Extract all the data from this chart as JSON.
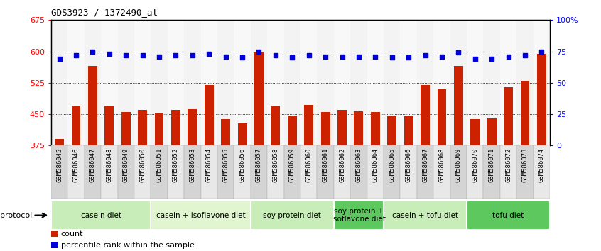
{
  "title": "GDS3923 / 1372490_at",
  "samples": [
    "GSM586045",
    "GSM586046",
    "GSM586047",
    "GSM586048",
    "GSM586049",
    "GSM586050",
    "GSM586051",
    "GSM586052",
    "GSM586053",
    "GSM586054",
    "GSM586055",
    "GSM586056",
    "GSM586057",
    "GSM586058",
    "GSM586059",
    "GSM586060",
    "GSM586061",
    "GSM586062",
    "GSM586063",
    "GSM586064",
    "GSM586065",
    "GSM586066",
    "GSM586067",
    "GSM586068",
    "GSM586069",
    "GSM586070",
    "GSM586071",
    "GSM586072",
    "GSM586073",
    "GSM586074"
  ],
  "counts": [
    390,
    470,
    565,
    470,
    455,
    460,
    452,
    460,
    462,
    520,
    438,
    428,
    598,
    470,
    447,
    472,
    455,
    460,
    457,
    455,
    445,
    445,
    520,
    510,
    565,
    438,
    440,
    515,
    530,
    595
  ],
  "percentile_ranks": [
    69,
    72,
    75,
    73,
    72,
    72,
    71,
    72,
    72,
    73,
    71,
    70,
    75,
    72,
    70,
    72,
    71,
    71,
    71,
    71,
    70,
    70,
    72,
    71,
    74,
    69,
    69,
    71,
    72,
    75
  ],
  "groups": [
    {
      "label": "casein diet",
      "start": 0,
      "end": 6,
      "color": "#c8edb8"
    },
    {
      "label": "casein + isoflavone diet",
      "start": 6,
      "end": 12,
      "color": "#e0f5d0"
    },
    {
      "label": "soy protein diet",
      "start": 12,
      "end": 17,
      "color": "#c8edb8"
    },
    {
      "label": "soy protein +\nisoflavone diet",
      "start": 17,
      "end": 20,
      "color": "#5dc85d"
    },
    {
      "label": "casein + tofu diet",
      "start": 20,
      "end": 25,
      "color": "#c8edb8"
    },
    {
      "label": "tofu diet",
      "start": 25,
      "end": 30,
      "color": "#5dc85d"
    }
  ],
  "ylim_left": [
    375,
    675
  ],
  "ylim_right": [
    0,
    100
  ],
  "yticks_left": [
    375,
    450,
    525,
    600,
    675
  ],
  "yticks_right": [
    0,
    25,
    50,
    75,
    100
  ],
  "right_tick_labels": [
    "0",
    "25",
    "50",
    "75",
    "100%"
  ],
  "bar_color": "#cc2200",
  "dot_color": "#0000dd",
  "background_color": "#ffffff",
  "plot_bg": "#ffffff",
  "label_count": "count",
  "label_percentile": "percentile rank within the sample"
}
